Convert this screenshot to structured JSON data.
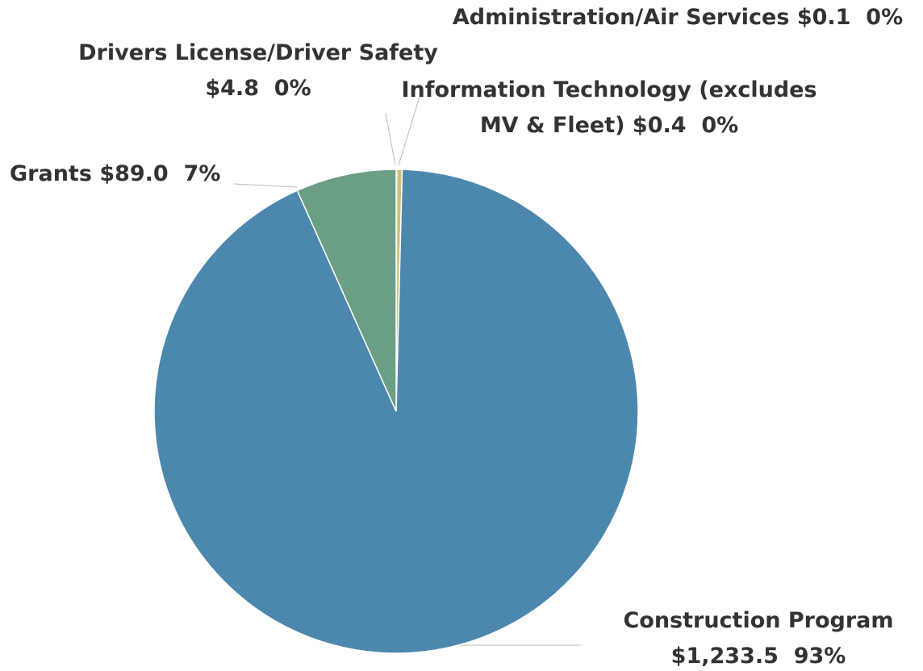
{
  "chart_data": {
    "type": "pie",
    "categories": [
      "Administration/Air Services",
      "Information Technology (excludes MV & Fleet)",
      "Drivers License/Driver Safety",
      "Construction Program",
      "Grants"
    ],
    "values": [
      0.1,
      0.4,
      4.8,
      1233.5,
      89.0
    ],
    "value_labels": [
      "$0.1",
      "$0.4",
      "$4.8",
      "$1,233.5",
      "$89.0"
    ],
    "percent_labels": [
      "0%",
      "0%",
      "0%",
      "93%",
      "7%"
    ],
    "colors": [
      "#e9dc8a",
      "#d9cf6a",
      "#c9c27a",
      "#4c88ae",
      "#6a9e85"
    ]
  }
}
